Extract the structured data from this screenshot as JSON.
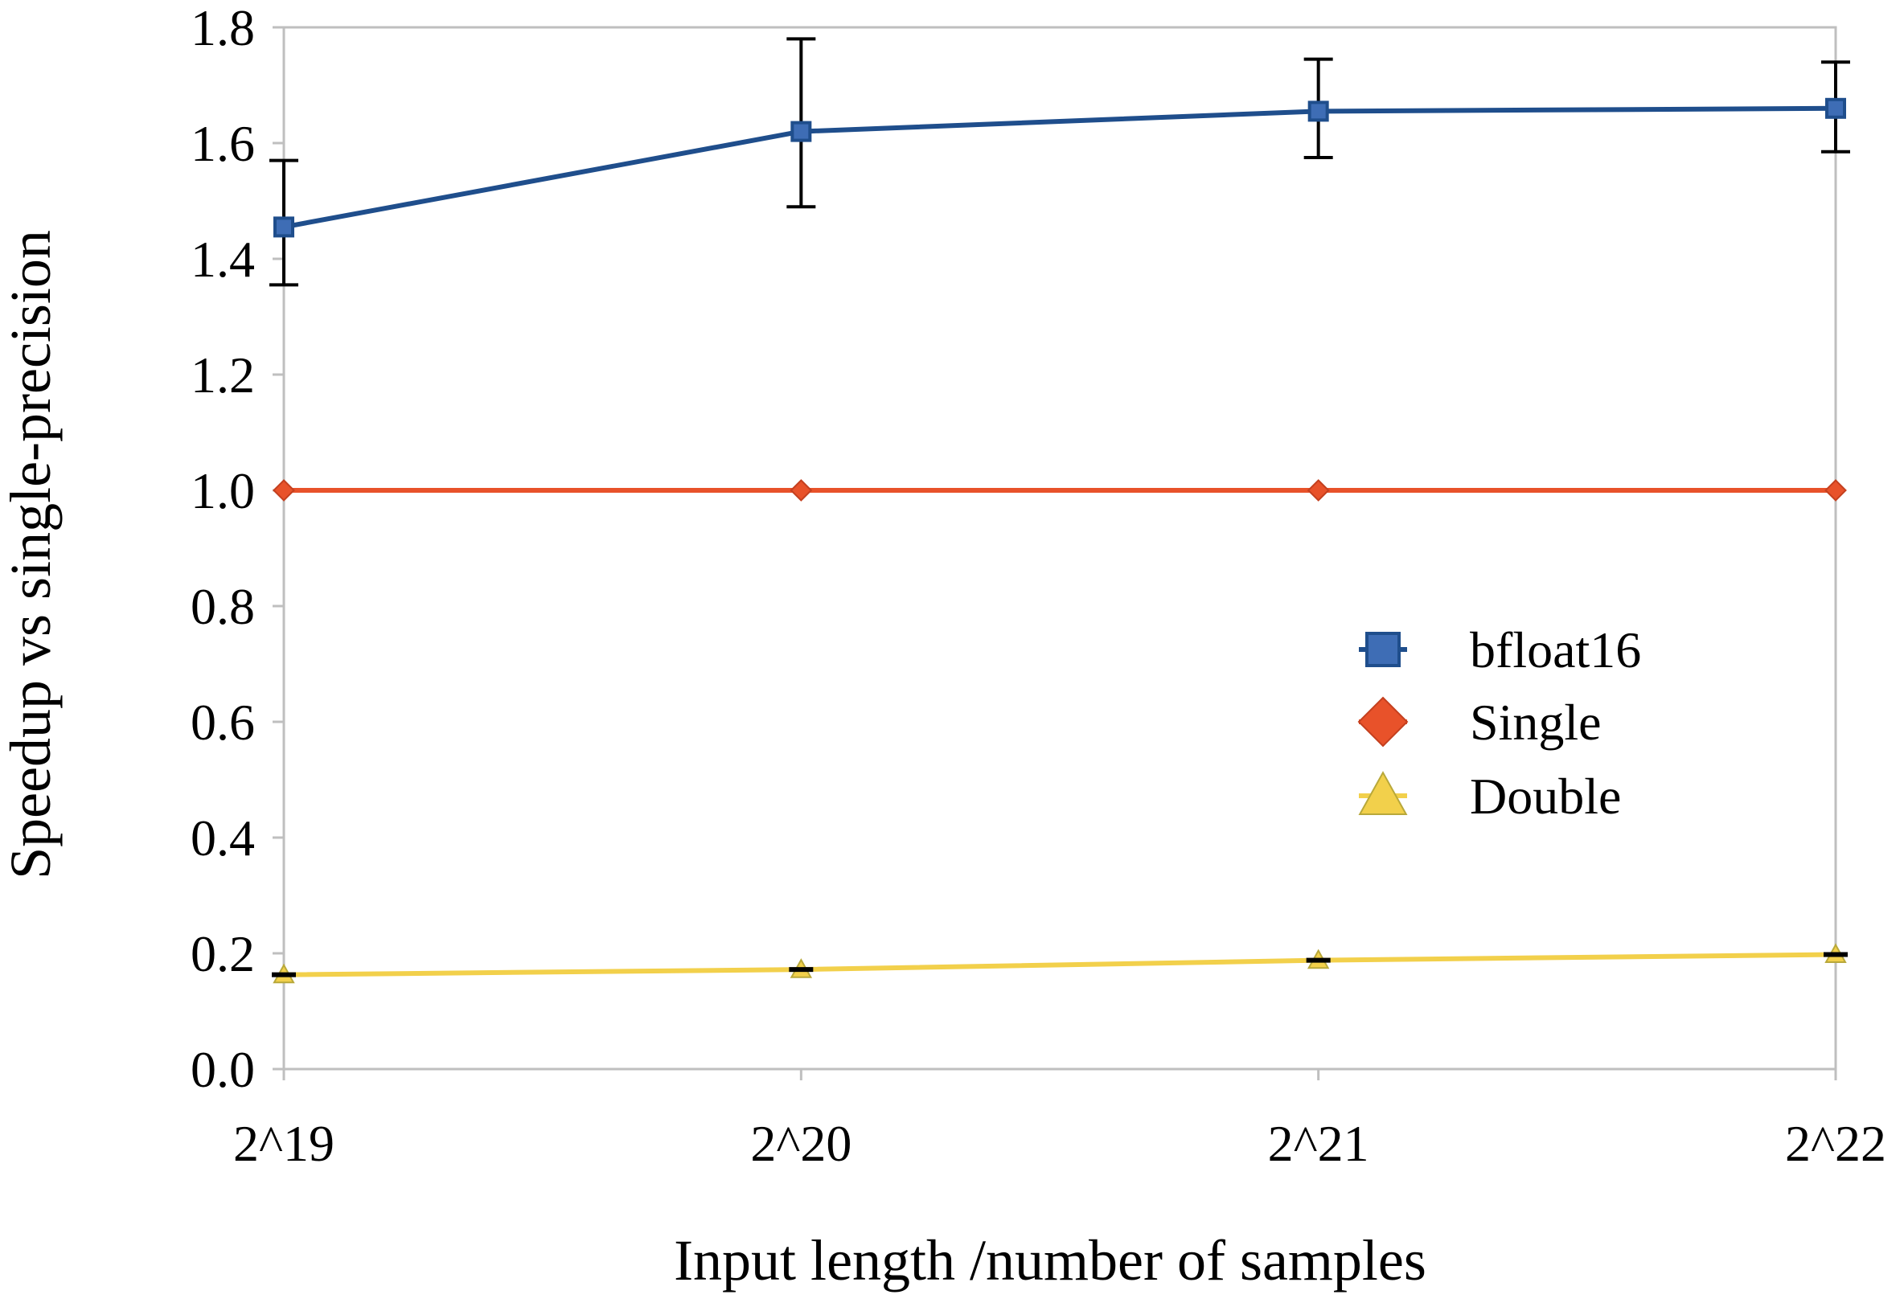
{
  "chart_data": {
    "type": "line",
    "title": "",
    "xlabel": "Input length /number of samples",
    "ylabel": "Speedup vs single-precision",
    "categories": [
      "2^19",
      "2^20",
      "2^21",
      "2^22"
    ],
    "ylim": [
      0.0,
      1.8
    ],
    "yticks": [
      "0.0",
      "0.2",
      "0.4",
      "0.6",
      "0.8",
      "1.0",
      "1.2",
      "1.4",
      "1.6",
      "1.8"
    ],
    "ytick_values": [
      0.0,
      0.2,
      0.4,
      0.6,
      0.8,
      1.0,
      1.2,
      1.4,
      1.6,
      1.8
    ],
    "grid": false,
    "legend_position": "right",
    "series": [
      {
        "name": "bfloat16",
        "values": [
          1.455,
          1.62,
          1.655,
          1.66
        ],
        "error_low": [
          1.355,
          1.49,
          1.575,
          1.585
        ],
        "error_high": [
          1.57,
          1.78,
          1.745,
          1.74
        ],
        "color": "#1f4e8c",
        "marker_fill": "#3e6db5",
        "marker": "square"
      },
      {
        "name": "Single",
        "values": [
          1.0,
          1.0,
          1.0,
          1.0
        ],
        "color": "#e8522a",
        "marker_fill": "#e8522a",
        "marker": "diamond"
      },
      {
        "name": "Double",
        "values": [
          0.163,
          0.172,
          0.188,
          0.198
        ],
        "color": "#f2d04b",
        "marker_fill": "#f2d04b",
        "marker": "triangle"
      }
    ],
    "axis_color": "#bfbfbf",
    "error_bar_color": "#000000"
  }
}
